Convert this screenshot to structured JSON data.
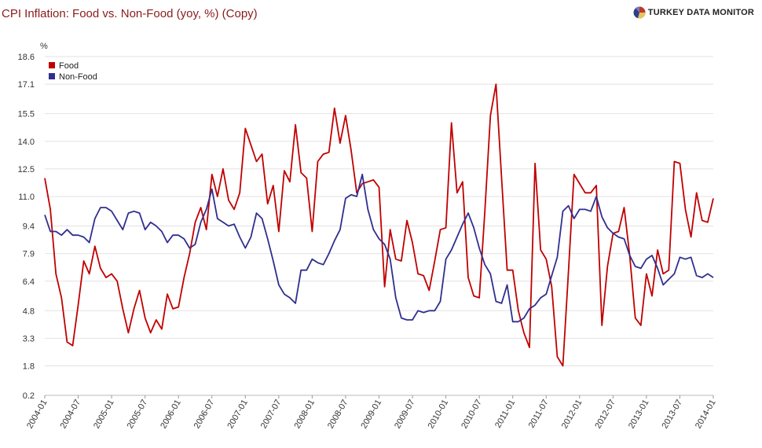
{
  "header": {
    "title": "CPI Inflation: Food vs. Non-Food (yoy, %) (Copy)",
    "brand": "TURKEY DATA MONITOR"
  },
  "chart_data": {
    "type": "line",
    "title": "CPI Inflation: Food vs. Non-Food (yoy, %) (Copy)",
    "ylabel": "%",
    "xlabel": "",
    "ylim": [
      0.2,
      18.6
    ],
    "y_ticks": [
      "18.6",
      "17.1",
      "15.5",
      "14.0",
      "12.5",
      "11.0",
      "9.4",
      "7.9",
      "6.4",
      "4.8",
      "3.3",
      "1.8",
      "0.2"
    ],
    "x_ticks": [
      "2004-01",
      "2004-07",
      "2005-01",
      "2005-07",
      "2006-01",
      "2006-07",
      "2007-01",
      "2007-07",
      "2008-01",
      "2008-07",
      "2009-01",
      "2009-07",
      "2010-01",
      "2010-07",
      "2011-01",
      "2011-07",
      "2012-01",
      "2012-07",
      "2013-01",
      "2013-07",
      "2014-01"
    ],
    "grid": true,
    "legend": "top-left",
    "start": "2004-01",
    "frequency": "monthly",
    "colors": {
      "food": "#c00000",
      "nonfood": "#2f2f8f"
    },
    "series": [
      {
        "name": "Food",
        "color": "#c00000",
        "values": [
          12.0,
          10.3,
          6.8,
          5.5,
          3.1,
          2.9,
          5.1,
          7.5,
          6.8,
          8.3,
          7.1,
          6.6,
          6.8,
          6.4,
          4.9,
          3.6,
          4.9,
          5.9,
          4.4,
          3.6,
          4.3,
          3.8,
          5.7,
          4.9,
          5.0,
          6.6,
          7.9,
          9.6,
          10.4,
          9.2,
          12.2,
          11.0,
          12.5,
          10.8,
          10.3,
          11.2,
          14.7,
          13.8,
          12.9,
          13.3,
          10.6,
          11.6,
          9.1,
          12.4,
          11.8,
          14.9,
          12.3,
          12.0,
          9.1,
          12.9,
          13.3,
          13.4,
          15.8,
          13.9,
          15.4,
          13.5,
          11.2,
          11.7,
          11.8,
          11.9,
          11.5,
          6.1,
          9.2,
          7.6,
          7.5,
          9.7,
          8.5,
          6.8,
          6.7,
          5.9,
          7.5,
          9.2,
          9.3,
          15.0,
          11.2,
          11.8,
          6.6,
          5.6,
          5.5,
          10.2,
          15.4,
          17.1,
          12.0,
          7.0,
          7.0,
          4.8,
          3.6,
          2.8,
          12.8,
          8.1,
          7.6,
          6.1,
          2.3,
          1.8,
          6.9,
          12.2,
          11.7,
          11.2,
          11.2,
          11.6,
          4.0,
          7.2,
          9.0,
          9.1,
          10.4,
          7.8,
          4.4,
          4.0,
          6.8,
          5.6,
          8.1,
          6.8,
          7.0,
          12.9,
          12.8,
          10.3,
          8.8,
          11.2,
          9.7,
          9.6,
          10.9
        ]
      },
      {
        "name": "Non-Food",
        "color": "#2f2f8f",
        "values": [
          10.0,
          9.1,
          9.1,
          8.9,
          9.2,
          8.9,
          8.9,
          8.8,
          8.5,
          9.8,
          10.4,
          10.4,
          10.2,
          9.7,
          9.2,
          10.1,
          10.2,
          10.1,
          9.2,
          9.6,
          9.4,
          9.1,
          8.5,
          8.9,
          8.9,
          8.7,
          8.2,
          8.4,
          9.6,
          10.3,
          11.4,
          9.8,
          9.6,
          9.4,
          9.5,
          8.8,
          8.2,
          8.8,
          10.1,
          9.8,
          8.7,
          7.5,
          6.2,
          5.7,
          5.5,
          5.2,
          7.0,
          7.0,
          7.6,
          7.4,
          7.3,
          7.9,
          8.6,
          9.2,
          10.9,
          11.1,
          11.0,
          12.2,
          10.3,
          9.2,
          8.7,
          8.4,
          7.6,
          5.5,
          4.4,
          4.3,
          4.3,
          4.8,
          4.7,
          4.8,
          4.8,
          5.3,
          7.6,
          8.1,
          8.8,
          9.5,
          10.1,
          9.3,
          8.2,
          7.3,
          6.8,
          5.3,
          5.2,
          6.2,
          4.2,
          4.2,
          4.4,
          4.9,
          5.1,
          5.5,
          5.7,
          6.7,
          7.7,
          10.2,
          10.5,
          9.8,
          10.3,
          10.3,
          10.2,
          11.0,
          9.9,
          9.3,
          9.0,
          8.8,
          8.7,
          7.8,
          7.2,
          7.1,
          7.6,
          7.8,
          7.1,
          6.2,
          6.5,
          6.8,
          7.7,
          7.6,
          7.7,
          6.7,
          6.6,
          6.8,
          6.6
        ]
      }
    ]
  }
}
